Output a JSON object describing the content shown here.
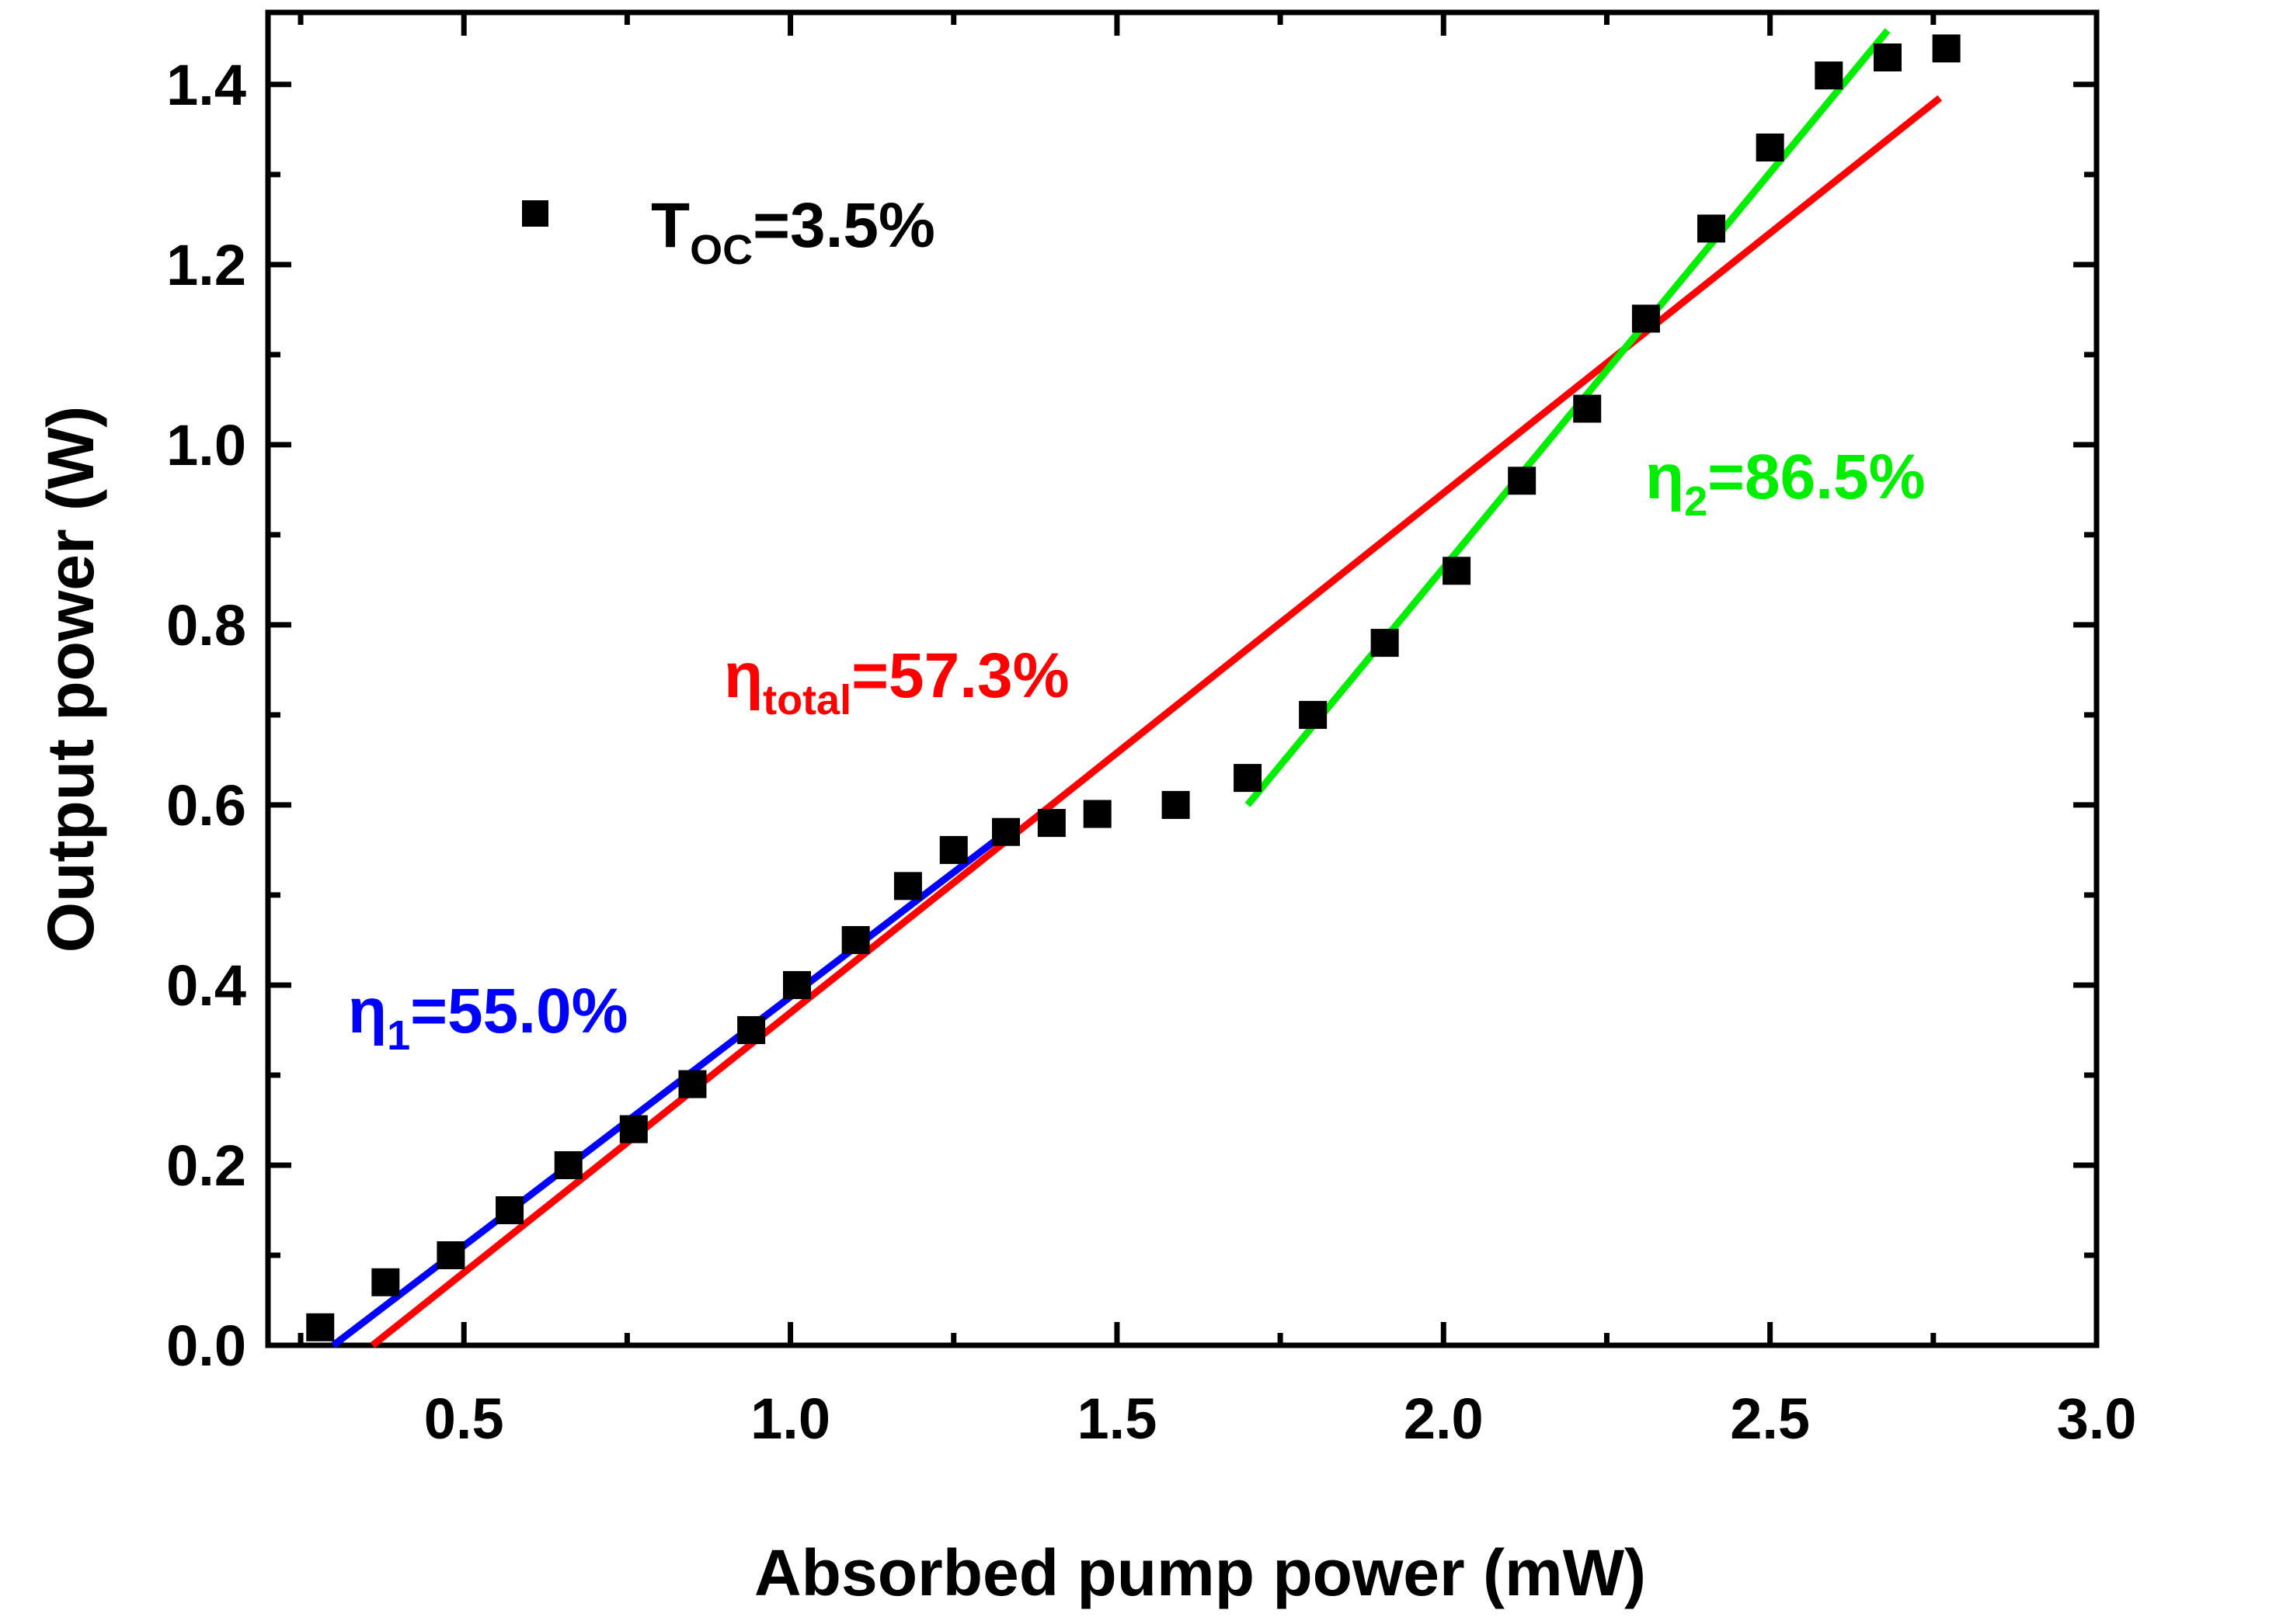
{
  "chart_data": {
    "type": "scatter",
    "title": "",
    "xlabel": "Absorbed pump power (mW)",
    "ylabel": "Output power (W)",
    "xlim": [
      0.2,
      3.0
    ],
    "ylim": [
      0.0,
      1.48
    ],
    "x_ticks": [
      "0.5",
      "1.0",
      "1.5",
      "2.0",
      "2.5",
      "3.0"
    ],
    "y_ticks": [
      "0.0",
      "0.2",
      "0.4",
      "0.6",
      "0.8",
      "1.0",
      "1.2",
      "1.4"
    ],
    "grid": false,
    "legend": {
      "position": "top-left",
      "marker": "square",
      "label_main": "T",
      "label_sub": "OC",
      "label_rest": "=3.5%"
    },
    "series": [
      {
        "name": "TOC=3.5%",
        "marker": "square",
        "color": "#000000",
        "x": [
          0.28,
          0.38,
          0.48,
          0.57,
          0.66,
          0.76,
          0.85,
          0.94,
          1.01,
          1.1,
          1.18,
          1.25,
          1.33,
          1.4,
          1.47,
          1.59,
          1.7,
          1.8,
          1.91,
          2.02,
          2.12,
          2.22,
          2.31,
          2.41,
          2.5,
          2.59,
          2.68,
          2.77
        ],
        "y": [
          0.02,
          0.07,
          0.1,
          0.15,
          0.2,
          0.24,
          0.29,
          0.35,
          0.4,
          0.45,
          0.51,
          0.55,
          0.57,
          0.58,
          0.59,
          0.6,
          0.63,
          0.7,
          0.78,
          0.86,
          0.96,
          1.04,
          1.14,
          1.24,
          1.33,
          1.41,
          1.43,
          1.44
        ]
      }
    ],
    "fits": [
      {
        "color": "#0000ff",
        "x": [
          0.3,
          1.34
        ],
        "y": [
          0.0,
          0.575
        ],
        "label_main": "η",
        "label_sub": "1",
        "label_rest": "=55.0%"
      },
      {
        "color": "#ff0000",
        "x": [
          0.36,
          2.76
        ],
        "y": [
          0.0,
          1.385
        ],
        "label_main": "η",
        "label_sub": "total",
        "label_rest": "=57.3%"
      },
      {
        "color": "#00ee00",
        "x": [
          1.7,
          2.68
        ],
        "y": [
          0.6,
          1.46
        ],
        "label_main": "η",
        "label_sub": "2",
        "label_rest": "=86.5%"
      }
    ]
  }
}
